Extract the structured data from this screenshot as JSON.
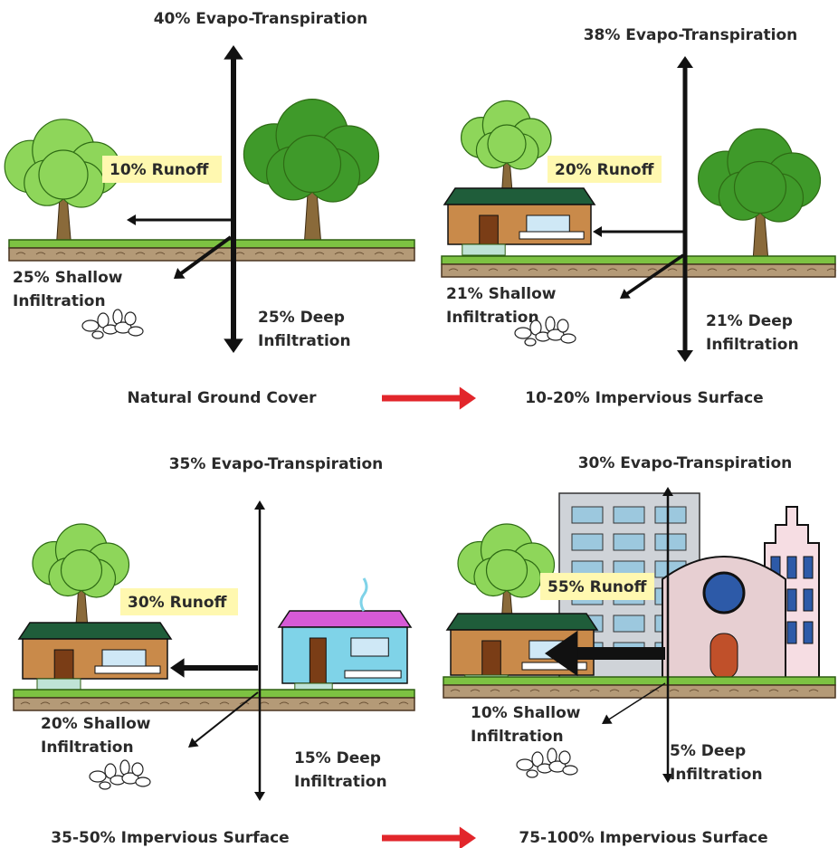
{
  "panels": [
    {
      "evapotranspiration": "40% Evapo-Transpiration",
      "runoff": "10% Runoff",
      "shallow_infiltration": [
        "25% Shallow",
        "Infiltration"
      ],
      "deep_infiltration": [
        "25% Deep",
        "Infiltration"
      ],
      "caption": "Natural Ground Cover"
    },
    {
      "evapotranspiration": "38% Evapo-Transpiration",
      "runoff": "20% Runoff",
      "shallow_infiltration": [
        "21% Shallow",
        "Infiltration"
      ],
      "deep_infiltration": [
        "21% Deep",
        "Infiltration"
      ],
      "caption": "10-20% Impervious Surface"
    },
    {
      "evapotranspiration": "35% Evapo-Transpiration",
      "runoff": "30% Runoff",
      "shallow_infiltration": [
        "20% Shallow",
        "Infiltration"
      ],
      "deep_infiltration": [
        "15% Deep",
        "Infiltration"
      ],
      "caption": "35-50% Impervious Surface"
    },
    {
      "evapotranspiration": "30% Evapo-Transpiration",
      "runoff": "55% Runoff",
      "shallow_infiltration": [
        "10% Shallow",
        "Infiltration"
      ],
      "deep_infiltration": [
        "5% Deep",
        "Infiltration"
      ],
      "caption": "75-100% Impervious Surface"
    }
  ]
}
